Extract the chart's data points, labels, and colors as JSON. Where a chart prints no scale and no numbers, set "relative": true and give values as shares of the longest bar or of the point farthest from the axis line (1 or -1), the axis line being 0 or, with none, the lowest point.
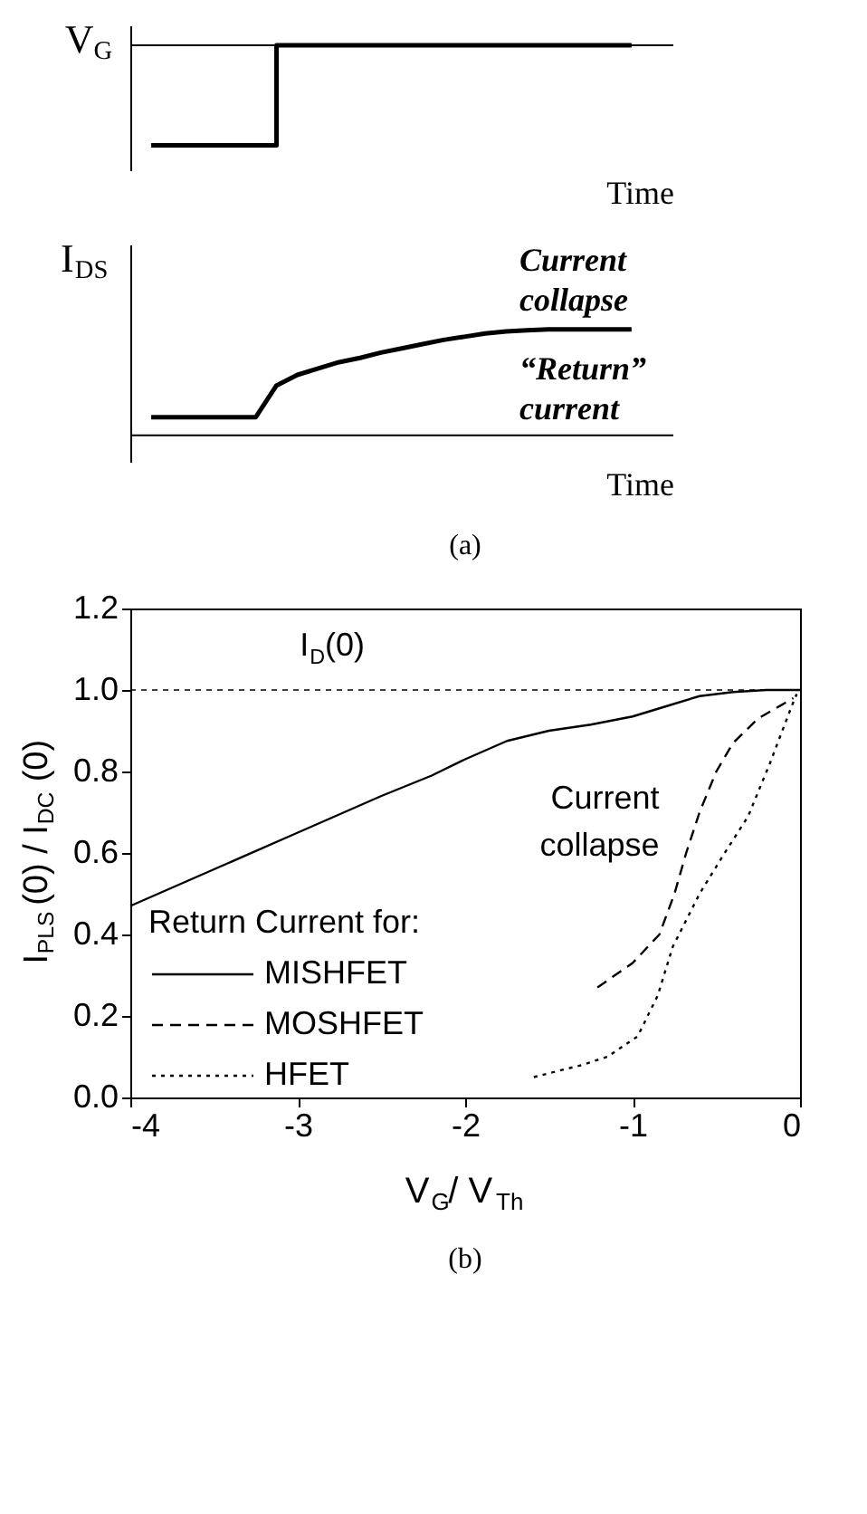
{
  "chart_data": [
    {
      "type": "step",
      "relative": true,
      "ylabel": "V$_{G}$",
      "xlabel": "Time",
      "categories": [
        null,
        null,
        null,
        null,
        null,
        null,
        null,
        null,
        null,
        null,
        null,
        null,
        null,
        null,
        null,
        null,
        null,
        null,
        null,
        null,
        null,
        null,
        null,
        null
      ],
      "series": [
        {
          "color": "#000000",
          "values": [
            -1,
            -1,
            -1,
            -1,
            -1,
            -1,
            0,
            0,
            0,
            0,
            0,
            0,
            0,
            0,
            0,
            0,
            0,
            0,
            0,
            0,
            0,
            0,
            0,
            0
          ]
        }
      ],
      "grid": false
    },
    {
      "type": "line",
      "relative": true,
      "ylabel": "I$_{DS}$",
      "xlabel": "Time",
      "categories": [
        null,
        null,
        null,
        null,
        null,
        null,
        null,
        null,
        null,
        null,
        null,
        null,
        null,
        null,
        null,
        null,
        null,
        null,
        null,
        null,
        null,
        null,
        null,
        null
      ],
      "series": [
        {
          "color": "#000000",
          "values": [
            0.17,
            0.17,
            0.17,
            0.17,
            0.17,
            0.17,
            0.47,
            0.57,
            0.63,
            0.69,
            0.73,
            0.78,
            0.82,
            0.86,
            0.9,
            0.93,
            0.96,
            0.98,
            0.99,
            1,
            1,
            1,
            1,
            1
          ]
        }
      ],
      "annotations": [
        "Current collapse",
        "“Return” current",
        "(a)"
      ],
      "grid": false
    },
    {
      "type": "line",
      "xlabel": "V$_{G}$/ V$_{Th}$",
      "ylabel": "I$_{PLS}$(0) / I$_{DC}$ (0)",
      "legend_title": "Return Current for:",
      "legend": "bottom left",
      "grid": false,
      "marker": "none",
      "xlim": [
        -4,
        0
      ],
      "xticks": [
        -4,
        -3,
        -2,
        -1,
        0
      ],
      "ylim": [
        0,
        1.2
      ],
      "yticks": [
        {
          "value": 0,
          "label": "0.0"
        },
        0.2,
        0.4,
        0.6,
        0.8,
        {
          "value": 1,
          "label": "1.0"
        },
        1.2
      ],
      "series": [
        {
          "name": "MISHFET",
          "color": "#000000",
          "line_style": "solid",
          "x": [
            -4,
            -3.5,
            -3,
            -2.5,
            -2.2,
            -2,
            -1.75,
            -1.5,
            -1.25,
            -1,
            -0.8,
            -0.6,
            -0.4,
            -0.2,
            0
          ],
          "values": [
            0.47,
            0.56,
            0.65,
            0.74,
            0.79,
            0.83,
            0.875,
            0.9,
            0.915,
            0.935,
            0.96,
            0.985,
            0.995,
            1.0,
            1.0
          ]
        },
        {
          "name": "MOSHFET",
          "color": "#000000",
          "line_style": "dashed",
          "x": [
            -1.21,
            -1.0,
            -0.84,
            -0.75,
            -0.68,
            -0.6,
            -0.5,
            -0.4,
            -0.25,
            -0.04
          ],
          "values": [
            0.27,
            0.33,
            0.4,
            0.5,
            0.6,
            0.7,
            0.8,
            0.87,
            0.93,
            0.98
          ]
        },
        {
          "name": "HFET",
          "color": "#000000",
          "line_style": "dotted",
          "x": [
            -1.59,
            -1.3,
            -1.15,
            -0.97,
            -0.85,
            -0.76,
            -0.6,
            -0.45,
            -0.31,
            -0.18,
            -0.05,
            -0.02
          ],
          "values": [
            0.05,
            0.08,
            0.1,
            0.15,
            0.25,
            0.37,
            0.5,
            0.6,
            0.69,
            0.82,
            0.96,
            0.99
          ]
        }
      ],
      "ref_lines": [
        {
          "axis": "y",
          "value": 1.0,
          "label": "I$_{D}$(0)",
          "line_style": "dashed"
        }
      ],
      "annotations": [
        "Current collapse",
        "(b)"
      ]
    }
  ]
}
